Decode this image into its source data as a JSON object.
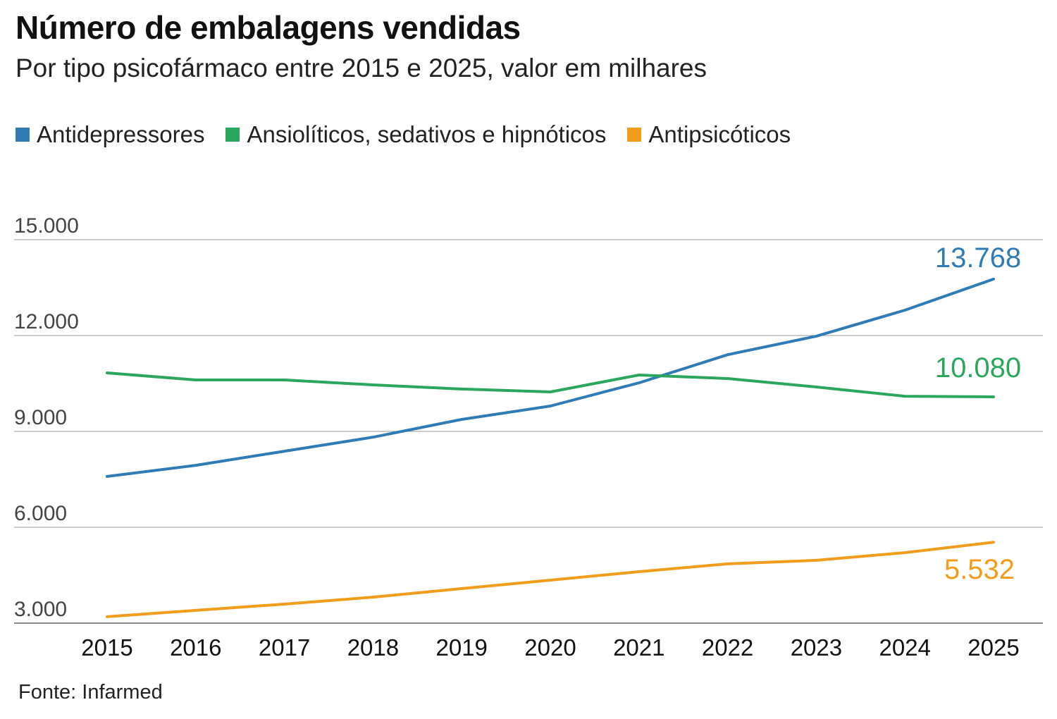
{
  "chart_data": {
    "type": "line",
    "title": "Número de embalagens vendidas",
    "subtitle": "Por tipo psicofármaco entre 2015 e 2025, valor em milhares",
    "source": "Fonte: Infarmed",
    "xlabel": "",
    "ylabel": "",
    "x": [
      "2015",
      "2016",
      "2017",
      "2018",
      "2019",
      "2020",
      "2021",
      "2022",
      "2023",
      "2024",
      "2025"
    ],
    "ylim": [
      3000,
      15000
    ],
    "yticks": [
      15000,
      12000,
      9000,
      6000,
      3000
    ],
    "ytick_labels": [
      "15.000",
      "12.000",
      "9.000",
      "6.000",
      "3.000"
    ],
    "grid": true,
    "legend_position": "top-left",
    "series": [
      {
        "name": "Antidepressores",
        "color": "#2e7bb6",
        "values": [
          7590,
          7940,
          8380,
          8820,
          9375,
          9795,
          10520,
          11400,
          11980,
          12795,
          13768
        ],
        "end_label": "13.768"
      },
      {
        "name": "Ansiolíticos, sedativos e hipnóticos",
        "color": "#2ba65d",
        "values": [
          10830,
          10610,
          10610,
          10455,
          10325,
          10235,
          10765,
          10655,
          10390,
          10100,
          10080
        ],
        "end_label": "10.080"
      },
      {
        "name": "Antipsicóticos",
        "color": "#f19c1b",
        "values": [
          3200,
          3400,
          3595,
          3815,
          4080,
          4345,
          4610,
          4855,
          4965,
          5205,
          5532
        ],
        "end_label": "5.532"
      }
    ]
  }
}
